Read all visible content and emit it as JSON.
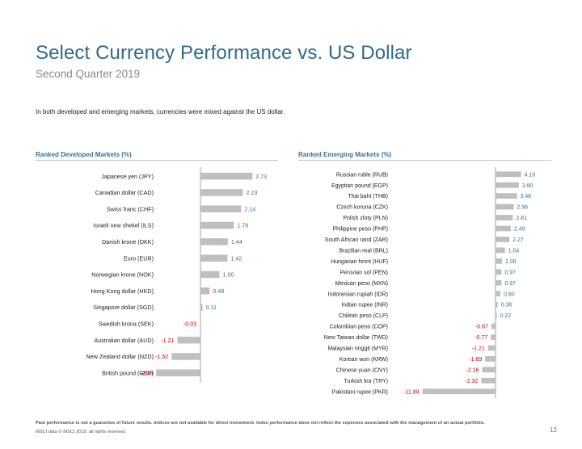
{
  "header": {
    "title": "Select Currency Performance vs. US Dollar",
    "subtitle": "Second Quarter 2019"
  },
  "intro": "In both developed and emerging markets, currencies were mixed against the US dollar.",
  "footer": {
    "disclaimer": "Past performance is not a guarantee of future results. Indices are not available for direct investment. Index performance does not reflect the expenses associated with the management of an actual portfolio.",
    "copyright": "MSCI data © MSCI 2019, all rights reserved.",
    "page_number": "12"
  },
  "colors": {
    "bar": "#bfbfbf",
    "positive_label": "#3f6f93",
    "negative_label": "#c00000",
    "category_label": "#222222"
  },
  "chart_data": [
    {
      "type": "bar",
      "orientation": "horizontal",
      "title": "Ranked Developed Markets (%)",
      "categories": [
        "Japanese yen (JPY)",
        "Canadian dollar (CAD)",
        "Swiss franc (CHF)",
        "Israeli new shekel (ILS)",
        "Danish krone (DKK)",
        "Euro (EUR)",
        "Norwegian krone (NOK)",
        "Hong Kong dollar (HKD)",
        "Singapore dollar (SGD)",
        "Swedish krona (SEK)",
        "Australian dollar (AUD)",
        "New Zealand dollar (NZD)",
        "British pound (GBP)"
      ],
      "values": [
        2.73,
        2.23,
        2.14,
        1.76,
        1.44,
        1.42,
        1.0,
        0.48,
        0.11,
        -0.03,
        -1.21,
        -1.52,
        -2.33
      ],
      "labels": [
        "2.73",
        "2.23",
        "2.14",
        "1.76",
        "1.44",
        "1.42",
        "1.00",
        "0.48",
        "0.11",
        "-0.03",
        "-1.21",
        "-1.52",
        "-2.33"
      ]
    },
    {
      "type": "bar",
      "orientation": "horizontal",
      "title": "Ranked Emerging Markets (%)",
      "categories": [
        "Russian ruble (RUB)",
        "Egyptian pound (EGP)",
        "Thai baht (THB)",
        "Czech koruna (CZK)",
        "Polish zloty (PLN)",
        "Philippine peso (PHP)",
        "South African rand (ZAR)",
        "Brazilian real (BRL)",
        "Hungarian forint (HUF)",
        "Peruvian sol (PEN)",
        "Mexican peso (MXN)",
        "Indonesian rupiah (IDR)",
        "Indian rupee (INR)",
        "Chilean peso (CLP)",
        "Colombian peso (COP)",
        "New Taiwan dollar (TWD)",
        "Malaysian ringgit (MYR)",
        "Korean won (KRW)",
        "Chinese yuan (CNY)",
        "Turkish lira (TRY)",
        "Pakistani rupee (PKR)"
      ],
      "values": [
        4.16,
        3.8,
        3.48,
        2.96,
        2.81,
        2.49,
        2.27,
        1.54,
        1.06,
        0.97,
        0.97,
        0.8,
        0.36,
        0.22,
        -0.67,
        -0.77,
        -1.21,
        -1.69,
        -2.16,
        -2.32,
        -11.89
      ],
      "labels": [
        "4.16",
        "3.80",
        "3.48",
        "2.96",
        "2.81",
        "2.49",
        "2.27",
        "1.54",
        "1.06",
        "0.97",
        "0.97",
        "0.80",
        "0.36",
        "0.22",
        "-0.67",
        "-0.77",
        "-1.21",
        "-1.69",
        "-2.16",
        "-2.32",
        "-11.89"
      ]
    }
  ]
}
